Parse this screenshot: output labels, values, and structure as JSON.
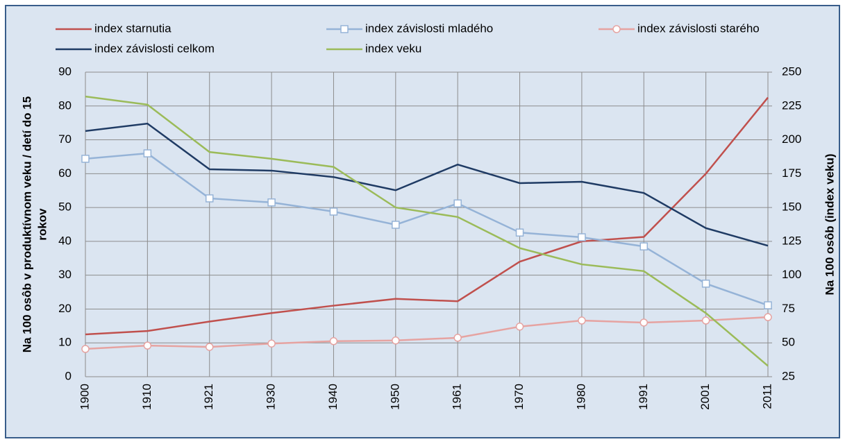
{
  "chart_data": {
    "type": "line",
    "categories": [
      "1900",
      "1910",
      "1921",
      "1930",
      "1940",
      "1950",
      "1961",
      "1970",
      "1980",
      "1991",
      "2001",
      "2011"
    ],
    "series": [
      {
        "name": "index starnutia",
        "color": "#c0504d",
        "marker": "none",
        "values": [
          12.5,
          13.5,
          16.3,
          18.8,
          21,
          23,
          22.3,
          34,
          40,
          41.3,
          60,
          82.5
        ]
      },
      {
        "name": "index závislosti mladého",
        "color": "#95b3d7",
        "marker": "square",
        "values": [
          64.4,
          66,
          52.7,
          51.5,
          48.8,
          44.9,
          51.2,
          42.6,
          41.2,
          38.5,
          27.5,
          21.1
        ]
      },
      {
        "name": "index závislosti starého",
        "color": "#e6a3a1",
        "marker": "circle",
        "values": [
          8.2,
          9.2,
          8.8,
          9.8,
          10.5,
          10.7,
          11.5,
          14.8,
          16.6,
          16,
          16.6,
          17.6
        ]
      },
      {
        "name": "index závislosti celkom",
        "color": "#1f3b64",
        "marker": "none",
        "values": [
          72.6,
          74.8,
          61.3,
          60.9,
          59,
          55.1,
          62.7,
          57.2,
          57.6,
          54.3,
          43.9,
          38.7
        ]
      },
      {
        "name": "index veku",
        "color": "#9bbb59",
        "marker": "none",
        "axis": "y2",
        "values": [
          232,
          226,
          191,
          186,
          180,
          150,
          143,
          120,
          108,
          103,
          72,
          33
        ]
      }
    ],
    "ylabel": [
      "Na 100 osôb v produktívnom veku / detí do 15",
      "rokov"
    ],
    "y2label": "Na 100 osôb (index veku)",
    "ylim": [
      0,
      90
    ],
    "yticks": [
      0,
      10,
      20,
      30,
      40,
      50,
      60,
      70,
      80,
      90
    ],
    "y2lim": [
      25,
      250
    ],
    "y2ticks": [
      25,
      50,
      75,
      100,
      125,
      150,
      175,
      200,
      225,
      250
    ],
    "grid": true,
    "legend": "top"
  }
}
